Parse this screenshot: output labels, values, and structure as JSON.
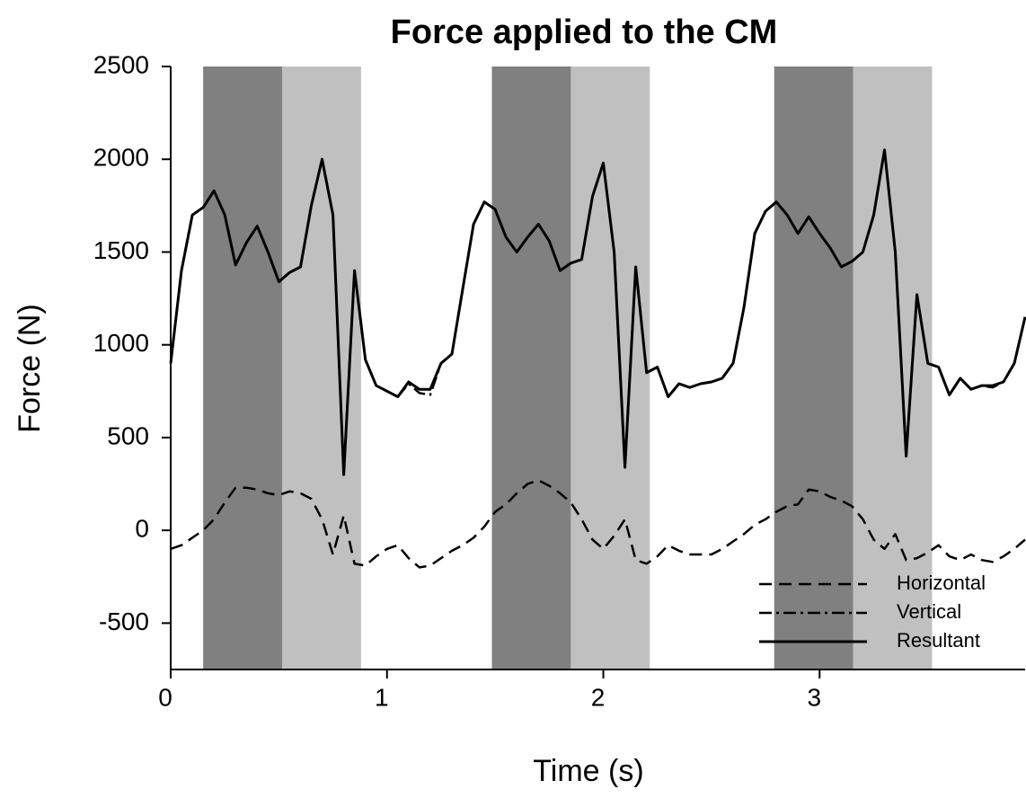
{
  "chart_data": {
    "type": "line",
    "title": "Force applied to the CM",
    "xlabel": "Time (s)",
    "ylabel": "Force (N)",
    "x": [
      0,
      0.05,
      0.1,
      0.15,
      0.2,
      0.25,
      0.3,
      0.35,
      0.4,
      0.45,
      0.5,
      0.55,
      0.6,
      0.65,
      0.7,
      0.75,
      0.8,
      0.85,
      0.9,
      0.95,
      1,
      1.05,
      1.1,
      1.15,
      1.2,
      1.25,
      1.3,
      1.35,
      1.4,
      1.45,
      1.5,
      1.55,
      1.6,
      1.65,
      1.7,
      1.75,
      1.8,
      1.85,
      1.9,
      1.95,
      2,
      2.05,
      2.1,
      2.15,
      2.2,
      2.25,
      2.3,
      2.35,
      2.4,
      2.45,
      2.5,
      2.55,
      2.6,
      2.65,
      2.7,
      2.75,
      2.8,
      2.85,
      2.9,
      2.95,
      3,
      3.05,
      3.1,
      3.15,
      3.2,
      3.25,
      3.3,
      3.35,
      3.4,
      3.45,
      3.5,
      3.55,
      3.6,
      3.65,
      3.7,
      3.75,
      3.8,
      3.85,
      3.9,
      3.95
    ],
    "series": [
      {
        "name": "Horizontal",
        "color": "#000000",
        "dash": "dashed",
        "values": [
          -100,
          -80,
          -40,
          0,
          60,
          150,
          230,
          230,
          220,
          200,
          190,
          210,
          200,
          170,
          60,
          -130,
          80,
          -180,
          -190,
          -140,
          -100,
          -80,
          -150,
          -200,
          -190,
          -150,
          -110,
          -80,
          -40,
          20,
          100,
          140,
          200,
          250,
          270,
          240,
          200,
          150,
          60,
          -50,
          -100,
          -30,
          60,
          -160,
          -180,
          -140,
          -80,
          -110,
          -130,
          -130,
          -130,
          -100,
          -60,
          -20,
          30,
          60,
          100,
          130,
          140,
          220,
          210,
          180,
          160,
          130,
          60,
          -50,
          -100,
          -20,
          -160,
          -150,
          -120,
          -80,
          -140,
          -160,
          -130,
          -160,
          -170,
          -140,
          -100,
          -50
        ]
      },
      {
        "name": "Vertical",
        "color": "#000000",
        "dash": "dashdot",
        "values": [
          900,
          1400,
          1700,
          1740,
          1830,
          1700,
          1430,
          1550,
          1640,
          1500,
          1340,
          1390,
          1420,
          1750,
          2000,
          1700,
          300,
          1400,
          920,
          780,
          750,
          720,
          790,
          740,
          730,
          900,
          950,
          1300,
          1650,
          1770,
          1730,
          1580,
          1500,
          1580,
          1650,
          1560,
          1400,
          1440,
          1460,
          1800,
          1980,
          1500,
          340,
          1420,
          850,
          880,
          720,
          790,
          770,
          790,
          800,
          820,
          900,
          1200,
          1600,
          1720,
          1770,
          1700,
          1600,
          1690,
          1600,
          1520,
          1420,
          1450,
          1500,
          1700,
          2050,
          1500,
          400,
          1270,
          900,
          880,
          730,
          820,
          760,
          780,
          770,
          800,
          900,
          1150
        ]
      },
      {
        "name": "Resultant",
        "color": "#000000",
        "dash": "solid",
        "values": [
          900,
          1400,
          1700,
          1740,
          1830,
          1700,
          1430,
          1550,
          1640,
          1500,
          1340,
          1390,
          1420,
          1750,
          2000,
          1700,
          300,
          1400,
          920,
          780,
          750,
          720,
          800,
          760,
          760,
          900,
          950,
          1300,
          1650,
          1770,
          1730,
          1580,
          1500,
          1580,
          1650,
          1560,
          1400,
          1440,
          1460,
          1800,
          1980,
          1500,
          340,
          1420,
          850,
          880,
          720,
          790,
          770,
          790,
          800,
          820,
          900,
          1200,
          1600,
          1720,
          1770,
          1700,
          1600,
          1690,
          1600,
          1520,
          1420,
          1450,
          1500,
          1700,
          2050,
          1500,
          400,
          1270,
          900,
          880,
          730,
          820,
          760,
          780,
          780,
          800,
          900,
          1150
        ]
      }
    ],
    "bands": [
      {
        "start": 0.15,
        "end": 0.515,
        "color": "#808080"
      },
      {
        "start": 0.515,
        "end": 0.88,
        "color": "#c0c0c0"
      },
      {
        "start": 1.485,
        "end": 1.85,
        "color": "#808080"
      },
      {
        "start": 1.85,
        "end": 2.215,
        "color": "#c0c0c0"
      },
      {
        "start": 2.79,
        "end": 3.155,
        "color": "#808080"
      },
      {
        "start": 3.155,
        "end": 3.52,
        "color": "#c0c0c0"
      }
    ],
    "xlim": [
      0,
      3.95
    ],
    "xticks": [
      0,
      1,
      2,
      3
    ],
    "ylim": [
      -750,
      2500
    ],
    "yticks": [
      -500,
      0,
      500,
      1000,
      1500,
      2000,
      2500
    ],
    "grid": false,
    "legend": "lower right"
  }
}
